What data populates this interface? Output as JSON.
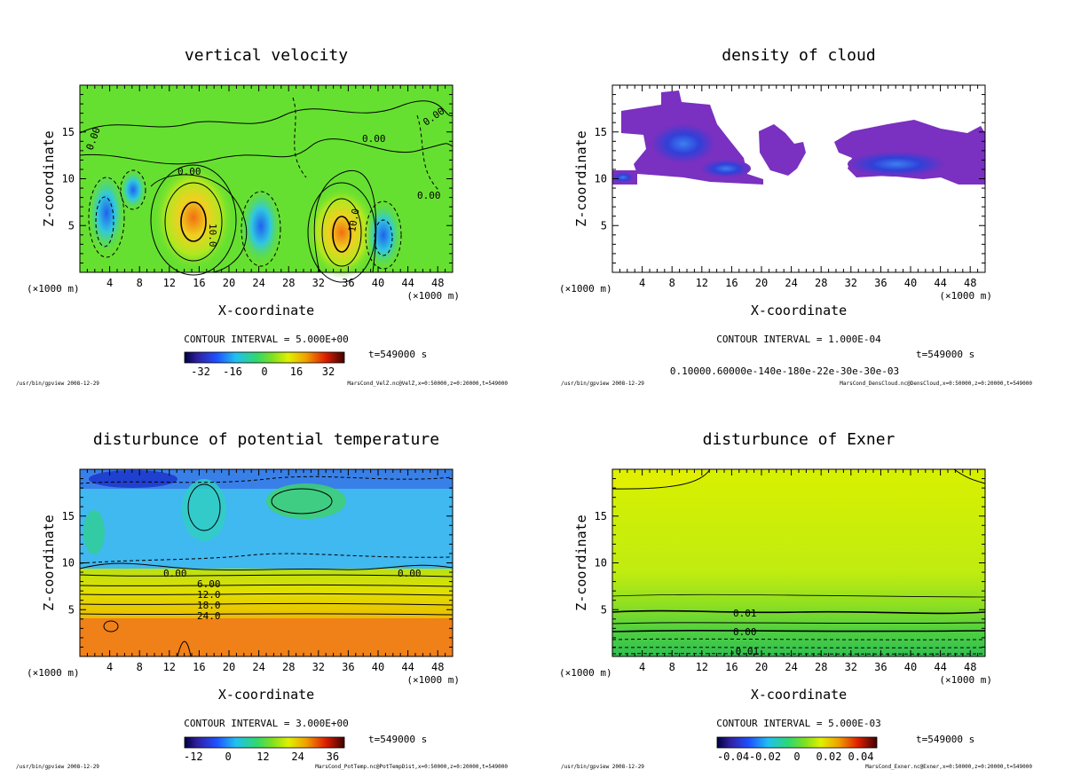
{
  "panels": [
    {
      "id": "velz",
      "title": "vertical velocity",
      "contour_interval": "CONTOUR INTERVAL = 5.000E+00",
      "time": "t=549000 s",
      "footer_left": "/usr/bin/gpview  2008-12-29",
      "footer_right": "MarsCond_VelZ.nc@VelZ,x=0:50000,z=0:20000,t=549000",
      "colorbar_ticks": [
        "-32",
        "-16",
        "0",
        "16",
        "32"
      ],
      "contour_labels": [
        "0.00",
        "0.00",
        "0.00",
        "0.00",
        "0.00",
        "10.0",
        "10.0"
      ],
      "colors": {
        "background": "#66e030",
        "low": "#2a70ff",
        "high": "#f07810"
      }
    },
    {
      "id": "cloud",
      "title": "density of cloud",
      "contour_interval": "CONTOUR INTERVAL = 1.000E-04",
      "time": "t=549000 s",
      "footer_left": "/usr/bin/gpview  2008-12-29",
      "footer_right": "MarsCond_DensCloud.nc@DensCloud,x=0:50000,z=0:20000,t=549000",
      "colorbar_ticks": [
        "0.10000.60000e-140e-180e-22e-30e-30e-03"
      ],
      "contour_labels": [],
      "colors": {
        "background": "#ffffff",
        "cloud": "#7a3cc8",
        "core": "#3050e0"
      }
    },
    {
      "id": "pott",
      "title": "disturbunce of potential temperature",
      "contour_interval": "CONTOUR INTERVAL = 3.000E+00",
      "time": "t=549000 s",
      "footer_left": "/usr/bin/gpview  2008-12-29",
      "footer_right": "MarsCond_PotTemp.nc@PotTempDist,x=0:50000,z=0:20000,t=549000",
      "colorbar_ticks": [
        "-12",
        "0",
        "12",
        "24",
        "36"
      ],
      "contour_labels": [
        "0.00",
        "0.00",
        "6.00",
        "12.0",
        "18.0",
        "24.0"
      ],
      "colors": {
        "upper": "#40b8f0",
        "lower": "#f08018"
      }
    },
    {
      "id": "exner",
      "title": "disturbunce of Exner",
      "contour_interval": "CONTOUR INTERVAL = 5.000E-03",
      "time": "t=549000 s",
      "footer_left": "/usr/bin/gpview  2008-12-29",
      "footer_right": "MarsCond_Exner.nc@Exner,x=0:50000,z=0:20000,t=549000",
      "colorbar_ticks": [
        "-0.04",
        "-0.02",
        "0",
        "0.02",
        "0.04"
      ],
      "contour_labels": [
        "0.01",
        "0.00",
        "-0.01"
      ],
      "colors": {
        "background": "#d0f000",
        "bottom": "#40d040"
      }
    }
  ],
  "chart_data": [
    {
      "type": "heatmap",
      "title": "vertical velocity",
      "xlabel": "X-coordinate",
      "ylabel": "Z-coordinate",
      "xunit": "(×1000 m)",
      "xlim": [
        0,
        50
      ],
      "ylim": [
        0,
        20
      ],
      "xticks": [
        4,
        8,
        12,
        16,
        20,
        24,
        28,
        32,
        36,
        40,
        44,
        48
      ],
      "yticks": [
        5,
        10,
        15
      ],
      "colorbar_range": [
        -40,
        40
      ],
      "contour_interval": 5.0
    },
    {
      "type": "heatmap",
      "title": "density of cloud",
      "xlabel": "X-coordinate",
      "ylabel": "Z-coordinate",
      "xunit": "(×1000 m)",
      "xlim": [
        0,
        50
      ],
      "ylim": [
        0,
        20
      ],
      "xticks": [
        4,
        8,
        12,
        16,
        20,
        24,
        28,
        32,
        36,
        40,
        44,
        48
      ],
      "yticks": [
        5,
        10,
        15
      ],
      "contour_interval": 0.0001
    },
    {
      "type": "heatmap",
      "title": "disturbunce of potential temperature",
      "xlabel": "X-coordinate",
      "ylabel": "Z-coordinate",
      "xunit": "(×1000 m)",
      "xlim": [
        0,
        50
      ],
      "ylim": [
        0,
        20
      ],
      "xticks": [
        4,
        8,
        12,
        16,
        20,
        24,
        28,
        32,
        36,
        40,
        44,
        48
      ],
      "yticks": [
        5,
        10,
        15
      ],
      "colorbar_range": [
        -15,
        40
      ],
      "contour_interval": 3.0
    },
    {
      "type": "heatmap",
      "title": "disturbunce of Exner",
      "xlabel": "X-coordinate",
      "ylabel": "Z-coordinate",
      "xunit": "(×1000 m)",
      "xlim": [
        0,
        50
      ],
      "ylim": [
        0,
        20
      ],
      "xticks": [
        4,
        8,
        12,
        16,
        20,
        24,
        28,
        32,
        36,
        40,
        44,
        48
      ],
      "yticks": [
        5,
        10,
        15
      ],
      "colorbar_range": [
        -0.05,
        0.05
      ],
      "contour_interval": 0.005
    }
  ]
}
